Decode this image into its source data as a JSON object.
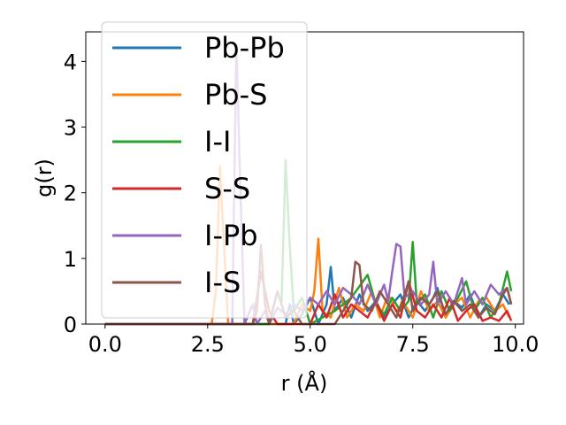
{
  "chart_data": {
    "type": "line",
    "xlabel": "r (Å)",
    "ylabel": "g(r)",
    "xlim": [
      -0.47,
      10.2
    ],
    "ylim": [
      0,
      4.45
    ],
    "xticks": [
      "0.0",
      "2.5",
      "5.0",
      "7.5",
      "10.0"
    ],
    "yticks": [
      "0",
      "1",
      "2",
      "3",
      "4"
    ],
    "legend_position": "top-left",
    "grid": false,
    "series": [
      {
        "name": "Pb-Pb",
        "color": "#1f77b4",
        "points": [
          [
            0,
            0
          ],
          [
            4.4,
            0
          ],
          [
            4.5,
            0.3
          ],
          [
            4.6,
            0
          ],
          [
            4.8,
            0.15
          ],
          [
            5.0,
            0.4
          ],
          [
            5.2,
            0
          ],
          [
            5.4,
            0.3
          ],
          [
            5.5,
            0.87
          ],
          [
            5.6,
            0.2
          ],
          [
            5.8,
            0.4
          ],
          [
            6.0,
            0.1
          ],
          [
            6.2,
            0.45
          ],
          [
            6.4,
            0.2
          ],
          [
            6.6,
            0.35
          ],
          [
            6.8,
            0.1
          ],
          [
            7.0,
            0.3
          ],
          [
            7.2,
            0.45
          ],
          [
            7.4,
            0.1
          ],
          [
            7.6,
            0.35
          ],
          [
            7.8,
            0.2
          ],
          [
            8.0,
            0.4
          ],
          [
            8.1,
            0.55
          ],
          [
            8.3,
            0.1
          ],
          [
            8.5,
            0.35
          ],
          [
            8.7,
            0.25
          ],
          [
            8.9,
            0.45
          ],
          [
            9.1,
            0.1
          ],
          [
            9.3,
            0.3
          ],
          [
            9.5,
            0.2
          ],
          [
            9.7,
            0.45
          ],
          [
            9.85,
            0.3
          ]
        ]
      },
      {
        "name": "Pb-S",
        "color": "#ff7f0e",
        "points": [
          [
            0,
            0
          ],
          [
            2.6,
            0
          ],
          [
            2.7,
            0.5
          ],
          [
            2.8,
            2.4
          ],
          [
            2.9,
            1.2
          ],
          [
            3.0,
            0
          ],
          [
            4.6,
            0
          ],
          [
            4.8,
            0.3
          ],
          [
            5.0,
            0.2
          ],
          [
            5.1,
            0.5
          ],
          [
            5.2,
            1.3
          ],
          [
            5.3,
            0.2
          ],
          [
            5.5,
            0.1
          ],
          [
            5.7,
            0.55
          ],
          [
            5.9,
            0.1
          ],
          [
            6.1,
            0.3
          ],
          [
            6.3,
            0.2
          ],
          [
            6.5,
            0.5
          ],
          [
            6.7,
            0.1
          ],
          [
            6.9,
            0.45
          ],
          [
            7.1,
            0.2
          ],
          [
            7.3,
            0.3
          ],
          [
            7.5,
            0.1
          ],
          [
            7.7,
            0.5
          ],
          [
            7.9,
            0.2
          ],
          [
            8.1,
            0.35
          ],
          [
            8.3,
            0.1
          ],
          [
            8.5,
            0.3
          ],
          [
            8.7,
            0.4
          ],
          [
            8.9,
            0.1
          ],
          [
            9.1,
            0.35
          ],
          [
            9.3,
            0.4
          ],
          [
            9.5,
            0.2
          ],
          [
            9.7,
            0.3
          ],
          [
            9.85,
            0.1
          ]
        ]
      },
      {
        "name": "I-I",
        "color": "#2ca02c",
        "points": [
          [
            0,
            0
          ],
          [
            4.0,
            0
          ],
          [
            4.2,
            0.5
          ],
          [
            4.3,
            0.3
          ],
          [
            4.4,
            2.5
          ],
          [
            4.5,
            1.2
          ],
          [
            4.6,
            0.2
          ],
          [
            4.8,
            0.4
          ],
          [
            5.0,
            0
          ],
          [
            5.6,
            0.2
          ],
          [
            6.0,
            0.4
          ],
          [
            6.4,
            0.75
          ],
          [
            6.6,
            0.3
          ],
          [
            6.8,
            0.15
          ],
          [
            7.0,
            0.4
          ],
          [
            7.2,
            0.2
          ],
          [
            7.4,
            0.35
          ],
          [
            7.5,
            1.25
          ],
          [
            7.6,
            0.3
          ],
          [
            7.8,
            0.45
          ],
          [
            8.0,
            0.1
          ],
          [
            8.2,
            0.5
          ],
          [
            8.4,
            0.2
          ],
          [
            8.6,
            0.4
          ],
          [
            8.8,
            0.65
          ],
          [
            9.0,
            0.2
          ],
          [
            9.2,
            0.4
          ],
          [
            9.4,
            0.1
          ],
          [
            9.6,
            0.3
          ],
          [
            9.8,
            0.8
          ],
          [
            9.9,
            0.5
          ]
        ]
      },
      {
        "name": "S-S",
        "color": "#d62728",
        "points": [
          [
            0,
            0
          ],
          [
            3.6,
            0
          ],
          [
            3.8,
            0.8
          ],
          [
            4.0,
            0.2
          ],
          [
            4.2,
            0
          ],
          [
            5.0,
            0
          ],
          [
            5.2,
            0.3
          ],
          [
            5.4,
            0.1
          ],
          [
            5.6,
            0.45
          ],
          [
            5.8,
            0.1
          ],
          [
            6.0,
            0.3
          ],
          [
            6.2,
            0.2
          ],
          [
            6.4,
            0.1
          ],
          [
            6.6,
            0.35
          ],
          [
            6.8,
            0.05
          ],
          [
            7.0,
            0.3
          ],
          [
            7.2,
            0.1
          ],
          [
            7.4,
            0.65
          ],
          [
            7.6,
            0.2
          ],
          [
            7.8,
            0.1
          ],
          [
            8.0,
            0.3
          ],
          [
            8.2,
            0.1
          ],
          [
            8.4,
            0.4
          ],
          [
            8.6,
            0.05
          ],
          [
            8.8,
            0.2
          ],
          [
            9.0,
            0.3
          ],
          [
            9.2,
            0.05
          ],
          [
            9.4,
            0.1
          ],
          [
            9.6,
            0.05
          ],
          [
            9.8,
            0.2
          ],
          [
            9.9,
            0.05
          ]
        ]
      },
      {
        "name": "I-Pb",
        "color": "#9467bd",
        "points": [
          [
            0,
            0
          ],
          [
            3.1,
            0
          ],
          [
            3.2,
            4.25
          ],
          [
            3.3,
            2.0
          ],
          [
            3.4,
            0
          ],
          [
            3.6,
            0.3
          ],
          [
            3.7,
            0
          ],
          [
            3.9,
            0.2
          ],
          [
            4.0,
            0
          ],
          [
            4.2,
            0.25
          ],
          [
            4.4,
            0.15
          ],
          [
            4.6,
            0.3
          ],
          [
            4.8,
            0.2
          ],
          [
            5.0,
            0.4
          ],
          [
            5.2,
            0.3
          ],
          [
            5.4,
            0.5
          ],
          [
            5.6,
            0.3
          ],
          [
            5.8,
            0.55
          ],
          [
            6.0,
            0.45
          ],
          [
            6.2,
            0.3
          ],
          [
            6.4,
            0.6
          ],
          [
            6.6,
            0.3
          ],
          [
            6.8,
            0.6
          ],
          [
            6.9,
            0.35
          ],
          [
            7.0,
            0.8
          ],
          [
            7.1,
            1.22
          ],
          [
            7.2,
            1.18
          ],
          [
            7.3,
            0.4
          ],
          [
            7.5,
            0.5
          ],
          [
            7.7,
            0.3
          ],
          [
            7.9,
            0.45
          ],
          [
            8.0,
            0.95
          ],
          [
            8.1,
            0.3
          ],
          [
            8.3,
            0.5
          ],
          [
            8.5,
            0.3
          ],
          [
            8.7,
            0.7
          ],
          [
            8.8,
            0.3
          ],
          [
            9.0,
            0.5
          ],
          [
            9.2,
            0.3
          ],
          [
            9.4,
            0.6
          ],
          [
            9.6,
            0.45
          ],
          [
            9.8,
            0.55
          ],
          [
            9.9,
            0.3
          ]
        ]
      },
      {
        "name": "I-S",
        "color": "#8c564b",
        "points": [
          [
            0,
            0
          ],
          [
            3.6,
            0
          ],
          [
            3.7,
            0.2
          ],
          [
            3.8,
            1.2
          ],
          [
            3.9,
            0.3
          ],
          [
            4.0,
            0
          ],
          [
            4.2,
            0.5
          ],
          [
            4.4,
            0.1
          ],
          [
            4.6,
            0.2
          ],
          [
            4.8,
            0
          ],
          [
            5.6,
            0
          ],
          [
            5.8,
            0.2
          ],
          [
            6.0,
            0.4
          ],
          [
            6.1,
            0.95
          ],
          [
            6.2,
            0.9
          ],
          [
            6.3,
            0.3
          ],
          [
            6.5,
            0.2
          ],
          [
            6.7,
            0.5
          ],
          [
            6.9,
            0.3
          ],
          [
            7.1,
            0.1
          ],
          [
            7.3,
            0.45
          ],
          [
            7.4,
            0.65
          ],
          [
            7.5,
            0.2
          ],
          [
            7.7,
            0.4
          ],
          [
            7.9,
            0.3
          ],
          [
            8.1,
            0.5
          ],
          [
            8.3,
            0.15
          ],
          [
            8.5,
            0.35
          ],
          [
            8.7,
            0.2
          ],
          [
            8.9,
            0.3
          ],
          [
            9.1,
            0.1
          ],
          [
            9.3,
            0.25
          ],
          [
            9.5,
            0.15
          ],
          [
            9.7,
            0.45
          ],
          [
            9.8,
            0.55
          ],
          [
            9.9,
            0.3
          ]
        ]
      }
    ]
  }
}
